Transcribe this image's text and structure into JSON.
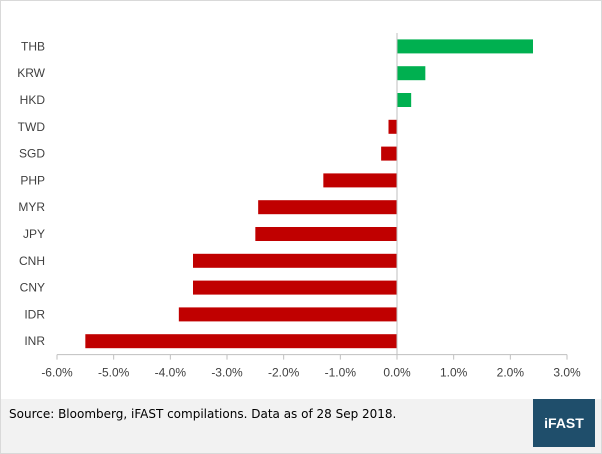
{
  "chart_data": {
    "type": "bar",
    "orientation": "horizontal",
    "categories": [
      "THB",
      "KRW",
      "HKD",
      "TWD",
      "SGD",
      "PHP",
      "MYR",
      "JPY",
      "CNH",
      "CNY",
      "IDR",
      "INR"
    ],
    "values": [
      2.4,
      0.5,
      0.25,
      -0.15,
      -0.28,
      -1.3,
      -2.45,
      -2.5,
      -3.6,
      -3.6,
      -3.85,
      -5.5
    ],
    "xlim": [
      -6.0,
      3.0
    ],
    "xticks": [
      "-6.0%",
      "-5.0%",
      "-4.0%",
      "-3.0%",
      "-2.0%",
      "-1.0%",
      "0.0%",
      "1.0%",
      "2.0%",
      "3.0%"
    ],
    "xtick_values": [
      -6,
      -5,
      -4,
      -3,
      -2,
      -1,
      0,
      1,
      2,
      3
    ],
    "grid": false,
    "colors": {
      "positive": "#00b050",
      "negative": "#c00000",
      "axis": "#bfbfbf"
    }
  },
  "footer": {
    "source": "Source: Bloomberg, iFAST compilations. Data as of 28 Sep 2018.",
    "logo": "iFAST",
    "logo_color": "#1f4e6b"
  }
}
